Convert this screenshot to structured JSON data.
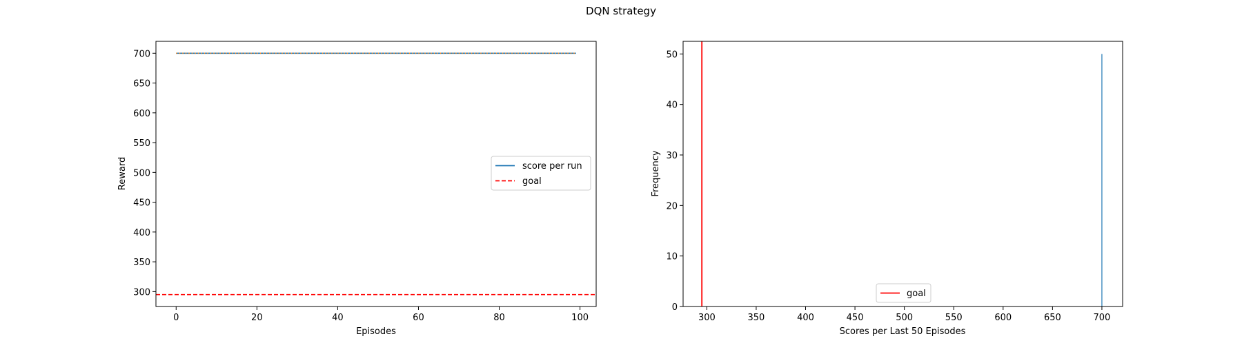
{
  "figure": {
    "title": "DQN strategy"
  },
  "colors": {
    "score": "#1f77b4",
    "mean": "#ff7f0e",
    "goal": "#ff0000",
    "hist": "#1f77b4"
  },
  "chart_data": [
    {
      "type": "line",
      "xlabel": "Episodes",
      "ylabel": "Reward",
      "xlim": [
        -5,
        104
      ],
      "ylim": [
        275,
        720
      ],
      "xticks": [
        0,
        20,
        40,
        60,
        80,
        100
      ],
      "yticks": [
        300,
        350,
        400,
        450,
        500,
        550,
        600,
        650,
        700
      ],
      "grid": false,
      "legend_position": "center-right",
      "series": [
        {
          "name": "score per run",
          "style": "solid",
          "color_key": "score",
          "x_range": [
            0,
            99
          ],
          "value": 700
        },
        {
          "style": "dotted",
          "color_key": "mean",
          "x_range": [
            0,
            99
          ],
          "value": 700
        }
      ],
      "hlines": [
        {
          "name": "goal",
          "style": "dashed",
          "color_key": "goal",
          "y": 295
        }
      ],
      "legend": [
        "score per run",
        "goal"
      ]
    },
    {
      "type": "bar",
      "xlabel": "Scores per Last 50 Episodes",
      "ylabel": "Frequency",
      "xlim": [
        276,
        721
      ],
      "ylim": [
        0,
        52.5
      ],
      "xticks": [
        300,
        350,
        400,
        450,
        500,
        550,
        600,
        650,
        700
      ],
      "yticks": [
        0,
        10,
        20,
        30,
        40,
        50
      ],
      "grid": false,
      "legend_position": "bottom-center",
      "bars": [
        {
          "x": 700,
          "value": 50
        }
      ],
      "vlines": [
        {
          "name": "goal",
          "style": "solid",
          "color_key": "goal",
          "x": 295
        }
      ],
      "legend": [
        "goal"
      ]
    }
  ]
}
